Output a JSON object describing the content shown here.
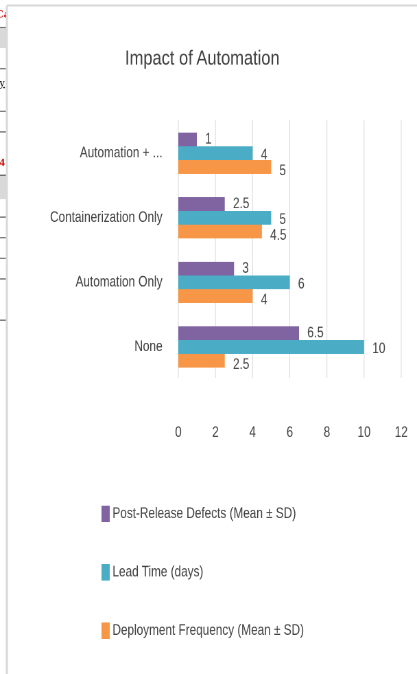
{
  "fragments": [
    "Ca",
    "ey",
    "4"
  ],
  "chart_data": {
    "type": "barh",
    "title": "Impact of Automation",
    "categories": [
      "Automation + ...",
      "Containerization Only",
      "Automation Only",
      "None"
    ],
    "series": [
      {
        "name": "Post-Release Defects (Mean ± SD)",
        "color": "#8064a2",
        "values": [
          1,
          2.5,
          3,
          6.5
        ]
      },
      {
        "name": "Lead Time (days)",
        "color": "#4bacc6",
        "values": [
          4,
          5,
          6,
          10
        ]
      },
      {
        "name": "Deployment Frequency (Mean ± SD)",
        "color": "#f79646",
        "values": [
          5,
          4.5,
          4,
          2.5
        ]
      }
    ],
    "xlim": [
      0,
      12
    ],
    "xticks": [
      0,
      2,
      4,
      6,
      8,
      10,
      12
    ],
    "grid": true,
    "legend": "bottom"
  }
}
